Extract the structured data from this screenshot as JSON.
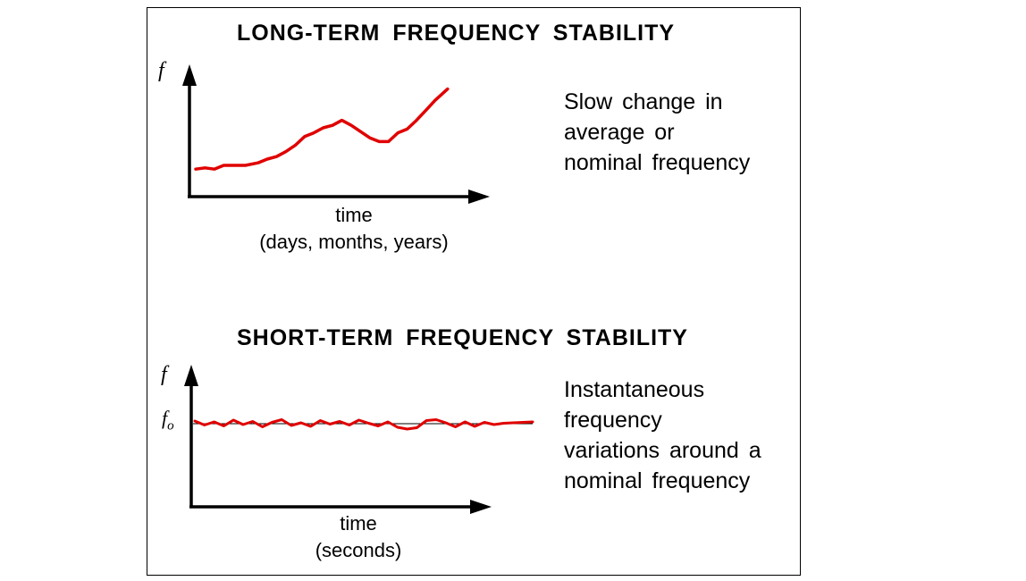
{
  "long_term": {
    "title": "LONG-TERM FREQUENCY STABILITY",
    "y_label": "f",
    "x_label": "time",
    "x_sublabel": "(days, months, years)",
    "description": [
      "Slow change in",
      "average or",
      "nominal frequency"
    ],
    "curve_color": "#e00000",
    "curve": [
      [
        0.02,
        0.22
      ],
      [
        0.05,
        0.23
      ],
      [
        0.08,
        0.22
      ],
      [
        0.11,
        0.25
      ],
      [
        0.14,
        0.25
      ],
      [
        0.18,
        0.25
      ],
      [
        0.22,
        0.27
      ],
      [
        0.25,
        0.3
      ],
      [
        0.28,
        0.32
      ],
      [
        0.31,
        0.36
      ],
      [
        0.34,
        0.41
      ],
      [
        0.37,
        0.48
      ],
      [
        0.4,
        0.51
      ],
      [
        0.43,
        0.55
      ],
      [
        0.46,
        0.57
      ],
      [
        0.49,
        0.61
      ],
      [
        0.52,
        0.57
      ],
      [
        0.55,
        0.52
      ],
      [
        0.58,
        0.47
      ],
      [
        0.61,
        0.44
      ],
      [
        0.64,
        0.44
      ],
      [
        0.67,
        0.51
      ],
      [
        0.7,
        0.54
      ],
      [
        0.73,
        0.61
      ],
      [
        0.76,
        0.69
      ],
      [
        0.79,
        0.77
      ],
      [
        0.83,
        0.86
      ]
    ]
  },
  "short_term": {
    "title": "SHORT-TERM FREQUENCY STABILITY",
    "y_label": "f",
    "nominal_label": "f",
    "nominal_sub": "o",
    "x_label": "time",
    "x_sublabel": "(seconds)",
    "description": [
      "Instantaneous",
      "frequency",
      "variations around a",
      "nominal frequency"
    ],
    "curve_color": "#e00000",
    "nominal_line_color": "#000000",
    "noise": [
      0.6,
      -0.3,
      0.4,
      -0.5,
      0.8,
      -0.2,
      0.5,
      -0.7,
      0.3,
      0.9,
      -0.4,
      0.2,
      -0.6,
      0.7,
      -0.1,
      0.5,
      -0.3,
      0.8,
      0.1,
      -0.5,
      0.4,
      -0.8,
      -1.2,
      -0.9,
      0.7,
      0.9,
      0.2,
      -0.7,
      0.4,
      -0.6,
      0.3,
      -0.2,
      0.1,
      0.2,
      0.3,
      0.4
    ]
  }
}
